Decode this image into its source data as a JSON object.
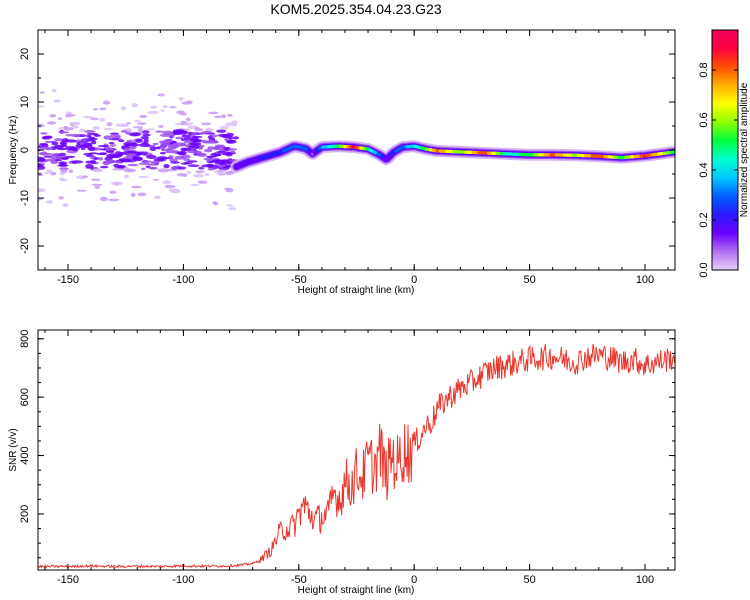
{
  "figure": {
    "title": "KOM5.2025.354.04.23.G23"
  },
  "chart_data": [
    {
      "type": "heatmap",
      "panel": "spectrogram",
      "xlabel": "Height of straight line (km)",
      "ylabel": "Frequency (Hz)",
      "xlim": [
        -163,
        113
      ],
      "ylim": [
        -25,
        25
      ],
      "xticks": [
        -150,
        -100,
        -50,
        0,
        50,
        100
      ],
      "yticks": [
        -20,
        -10,
        0,
        10,
        20
      ],
      "grid": false,
      "ridge": {
        "x": [
          -77,
          -72,
          -65,
          -58,
          -52,
          -47,
          -44,
          -40,
          -33,
          -26,
          -20,
          -15,
          -12,
          -9,
          -5,
          0,
          5,
          10,
          20,
          30,
          40,
          50,
          60,
          70,
          80,
          90,
          100,
          113
        ],
        "freq": [
          -3.5,
          -2.5,
          -1.5,
          -0.5,
          0.8,
          0.3,
          -0.8,
          0.6,
          0.8,
          0.6,
          0.2,
          -1.0,
          -2.0,
          -0.5,
          0.6,
          0.8,
          0.2,
          -0.2,
          -0.4,
          -0.6,
          -0.8,
          -1.0,
          -1.0,
          -1.1,
          -1.3,
          -1.6,
          -1.2,
          -0.4
        ],
        "amplitude": [
          0.15,
          0.15,
          0.2,
          0.25,
          0.3,
          0.3,
          0.1,
          0.35,
          0.5,
          0.9,
          0.5,
          0.3,
          0.1,
          0.25,
          0.3,
          0.4,
          0.55,
          0.8,
          0.55,
          0.85,
          0.45,
          0.5,
          0.8,
          0.6,
          0.85,
          0.5,
          0.85,
          0.5
        ]
      },
      "colorbar": {
        "label": "Normalized spectral amplitude",
        "ticks": [
          0.0,
          0.2,
          0.4,
          0.6,
          0.8
        ],
        "tick_labels": [
          "0.0",
          "0.2",
          "0.4",
          "0.6",
          "0.8"
        ],
        "range": [
          0,
          0.96
        ],
        "colors": [
          "#e8d0f8",
          "#b070f0",
          "#6a00ff",
          "#2a1aff",
          "#0060ff",
          "#00c8ff",
          "#00ffd0",
          "#00ff40",
          "#8cff00",
          "#ffff00",
          "#ffb000",
          "#ff5000",
          "#ff0040",
          "#f0005a"
        ]
      }
    },
    {
      "type": "line",
      "panel": "snr",
      "xlabel": "Height of straight line (km)",
      "ylabel": "SNR (v/v)",
      "xlim": [
        -163,
        113
      ],
      "ylim": [
        8,
        830
      ],
      "xticks": [
        -150,
        -100,
        -50,
        0,
        50,
        100
      ],
      "yticks": [
        200,
        400,
        600,
        800
      ],
      "grid": false,
      "series": [
        {
          "color": "#e8382e",
          "x": [
            -163,
            -150,
            -140,
            -130,
            -120,
            -110,
            -100,
            -90,
            -80,
            -75,
            -70,
            -67,
            -65,
            -62,
            -60,
            -58,
            -55,
            -52,
            -50,
            -48,
            -45,
            -43,
            -40,
            -37,
            -35,
            -32,
            -30,
            -27,
            -25,
            -22,
            -20,
            -17,
            -15,
            -12,
            -10,
            -7,
            -5,
            -2,
            0,
            3,
            5,
            8,
            10,
            15,
            20,
            25,
            30,
            35,
            40,
            45,
            50,
            55,
            60,
            65,
            70,
            75,
            80,
            85,
            90,
            95,
            100,
            105,
            110,
            113
          ],
          "values": [
            20,
            20,
            22,
            20,
            21,
            20,
            22,
            21,
            22,
            25,
            30,
            40,
            55,
            75,
            110,
            140,
            150,
            160,
            200,
            230,
            200,
            180,
            190,
            200,
            270,
            250,
            310,
            300,
            340,
            330,
            380,
            360,
            420,
            330,
            400,
            370,
            420,
            410,
            440,
            470,
            500,
            520,
            560,
            600,
            630,
            650,
            680,
            700,
            710,
            720,
            730,
            735,
            740,
            730,
            720,
            740,
            745,
            735,
            720,
            730,
            710,
            720,
            730,
            740
          ]
        }
      ]
    }
  ]
}
